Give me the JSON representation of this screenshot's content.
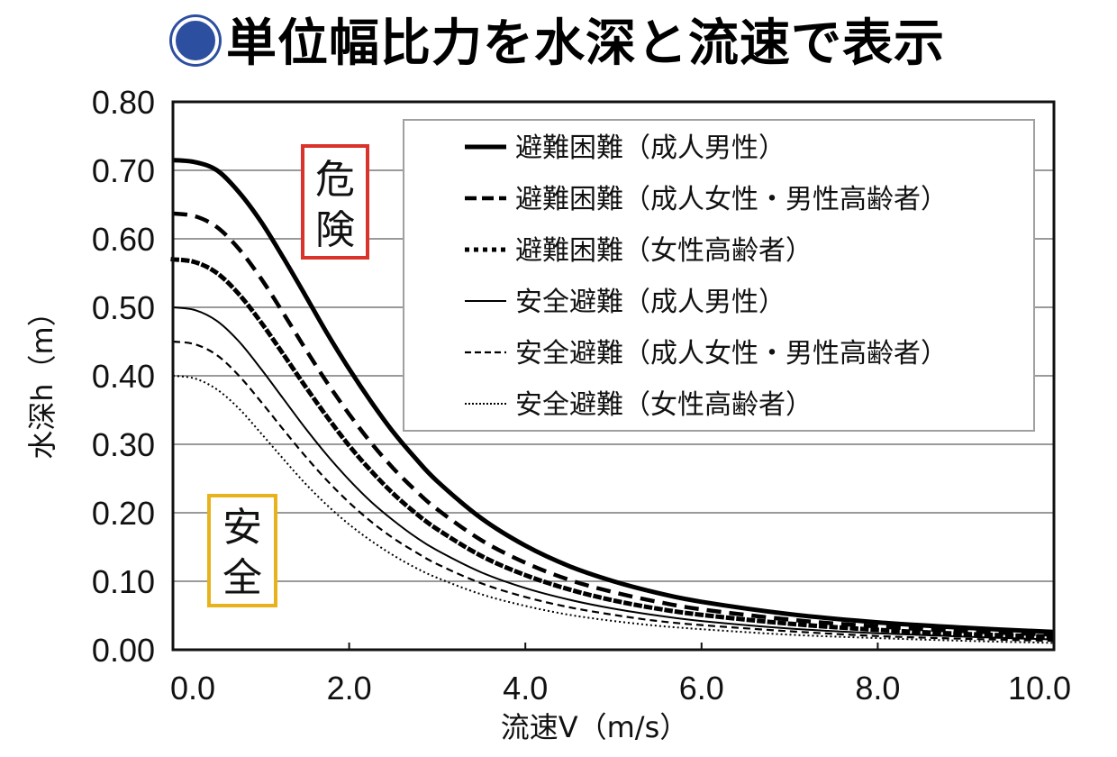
{
  "title": "単位幅比力を水深と流速で表示",
  "title_bullet_icon": "blue-circle-bullet-icon",
  "colors": {
    "title_bullet": "#2d4fa0",
    "danger_box": "#d9332b",
    "safe_box": "#e8b21c",
    "gridline": "#9a9a9a",
    "frame": "#111111",
    "series": "#000000"
  },
  "zones": {
    "danger": [
      "危",
      "険"
    ],
    "safe": [
      "安",
      "全"
    ]
  },
  "chart_data": {
    "type": "line",
    "title": "単位幅比力を水深と流速で表示",
    "xlabel": "流速V（m/s）",
    "ylabel": "水深h（m）",
    "xlim": [
      0,
      10
    ],
    "ylim": [
      0,
      0.8
    ],
    "xticks": [
      "0.0",
      "2.0",
      "4.0",
      "6.0",
      "8.0",
      "10.0"
    ],
    "xtick_values": [
      0,
      2,
      4,
      6,
      8,
      10
    ],
    "yticks": [
      "0.00",
      "0.10",
      "0.20",
      "0.30",
      "0.40",
      "0.50",
      "0.60",
      "0.70",
      "0.80"
    ],
    "ytick_values": [
      0,
      0.1,
      0.2,
      0.3,
      0.4,
      0.5,
      0.6,
      0.7,
      0.8
    ],
    "grid": "horizontal",
    "legend_position": "top-right",
    "x": [
      0,
      0.25,
      0.5,
      0.75,
      1.0,
      1.25,
      1.5,
      1.75,
      2.0,
      2.25,
      2.5,
      2.75,
      3.0,
      3.5,
      4.0,
      4.5,
      5.0,
      5.5,
      6.0,
      7.0,
      8.0,
      9.0,
      10.0
    ],
    "series": [
      {
        "name": "避難困難（成人男性）",
        "style": "thick-solid",
        "values": [
          0.715,
          0.712,
          0.7,
          0.668,
          0.625,
          0.573,
          0.518,
          0.462,
          0.41,
          0.362,
          0.318,
          0.28,
          0.246,
          0.192,
          0.152,
          0.122,
          0.1,
          0.083,
          0.07,
          0.052,
          0.04,
          0.032,
          0.026
        ]
      },
      {
        "name": "避難困難（成人女性・男性高齢者）",
        "style": "thick-dashed",
        "values": [
          0.637,
          0.633,
          0.617,
          0.585,
          0.542,
          0.492,
          0.44,
          0.39,
          0.344,
          0.302,
          0.265,
          0.233,
          0.205,
          0.16,
          0.127,
          0.102,
          0.084,
          0.07,
          0.059,
          0.044,
          0.034,
          0.027,
          0.022
        ]
      },
      {
        "name": "避難困難（女性高齢者）",
        "style": "thick-dotted",
        "values": [
          0.57,
          0.566,
          0.55,
          0.519,
          0.478,
          0.432,
          0.385,
          0.34,
          0.298,
          0.261,
          0.228,
          0.2,
          0.176,
          0.137,
          0.109,
          0.088,
          0.072,
          0.06,
          0.051,
          0.038,
          0.029,
          0.023,
          0.019
        ]
      },
      {
        "name": "安全避難（成人男性）",
        "style": "thin-solid",
        "values": [
          0.5,
          0.496,
          0.48,
          0.45,
          0.41,
          0.367,
          0.324,
          0.284,
          0.248,
          0.216,
          0.189,
          0.165,
          0.145,
          0.113,
          0.09,
          0.073,
          0.06,
          0.05,
          0.042,
          0.031,
          0.024,
          0.019,
          0.015
        ]
      },
      {
        "name": "安全避難（成人女性・男性高齢者）",
        "style": "thin-dashed",
        "values": [
          0.45,
          0.446,
          0.43,
          0.4,
          0.362,
          0.322,
          0.283,
          0.247,
          0.215,
          0.187,
          0.163,
          0.143,
          0.125,
          0.097,
          0.077,
          0.062,
          0.051,
          0.042,
          0.036,
          0.027,
          0.02,
          0.016,
          0.013
        ]
      },
      {
        "name": "安全避難（女性高齢者）",
        "style": "thin-dotted",
        "values": [
          0.4,
          0.396,
          0.38,
          0.352,
          0.316,
          0.279,
          0.243,
          0.211,
          0.183,
          0.159,
          0.138,
          0.12,
          0.105,
          0.081,
          0.064,
          0.051,
          0.042,
          0.035,
          0.03,
          0.022,
          0.017,
          0.013,
          0.01
        ]
      }
    ]
  }
}
